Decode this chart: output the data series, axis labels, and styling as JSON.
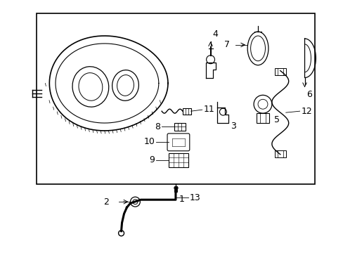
{
  "bg_color": "#ffffff",
  "line_color": "#000000",
  "font_size_label": 9,
  "fig_width": 4.89,
  "fig_height": 3.6,
  "dpi": 100
}
